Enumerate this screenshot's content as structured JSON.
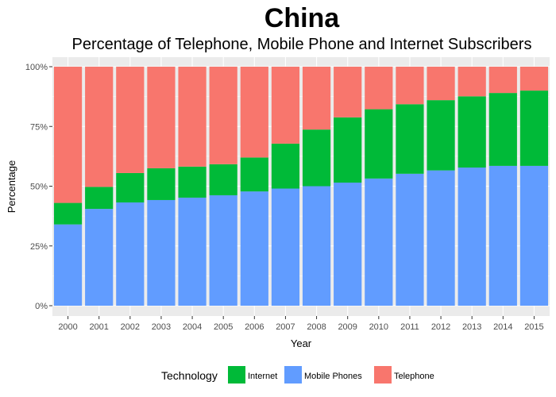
{
  "chart_data": {
    "type": "bar",
    "stacked": "percent",
    "title": "China",
    "subtitle": "Percentage of Telephone, Mobile Phone and Internet Subscribers",
    "xlabel": "Year",
    "ylabel": "Percentage",
    "ylim": [
      0,
      1
    ],
    "yticks": [
      "0%",
      "25%",
      "50%",
      "75%",
      "100%"
    ],
    "categories": [
      "2000",
      "2001",
      "2002",
      "2003",
      "2004",
      "2005",
      "2006",
      "2007",
      "2008",
      "2009",
      "2010",
      "2011",
      "2012",
      "2013",
      "2014",
      "2015"
    ],
    "series": [
      {
        "name": "Mobile Phones",
        "color": "#619CFF",
        "values": [
          0.34,
          0.405,
          0.432,
          0.442,
          0.452,
          0.462,
          0.478,
          0.49,
          0.5,
          0.515,
          0.532,
          0.552,
          0.566,
          0.578,
          0.585,
          0.585
        ]
      },
      {
        "name": "Internet",
        "color": "#00BA38",
        "values": [
          0.09,
          0.092,
          0.123,
          0.133,
          0.13,
          0.13,
          0.142,
          0.188,
          0.237,
          0.273,
          0.29,
          0.291,
          0.294,
          0.298,
          0.305,
          0.315
        ]
      },
      {
        "name": "Telephone",
        "color": "#F8766D",
        "values": [
          0.57,
          0.503,
          0.445,
          0.425,
          0.418,
          0.408,
          0.38,
          0.322,
          0.263,
          0.212,
          0.178,
          0.157,
          0.14,
          0.124,
          0.11,
          0.1
        ]
      }
    ],
    "legend": {
      "title": "Technology",
      "position": "bottom",
      "entries": [
        {
          "name": "Internet",
          "color": "#00BA38"
        },
        {
          "name": "Mobile Phones",
          "color": "#619CFF"
        },
        {
          "name": "Telephone",
          "color": "#F8766D"
        }
      ]
    },
    "panel_background": "#EBEBEB",
    "grid": true,
    "grid_color": "#FFFFFF"
  }
}
